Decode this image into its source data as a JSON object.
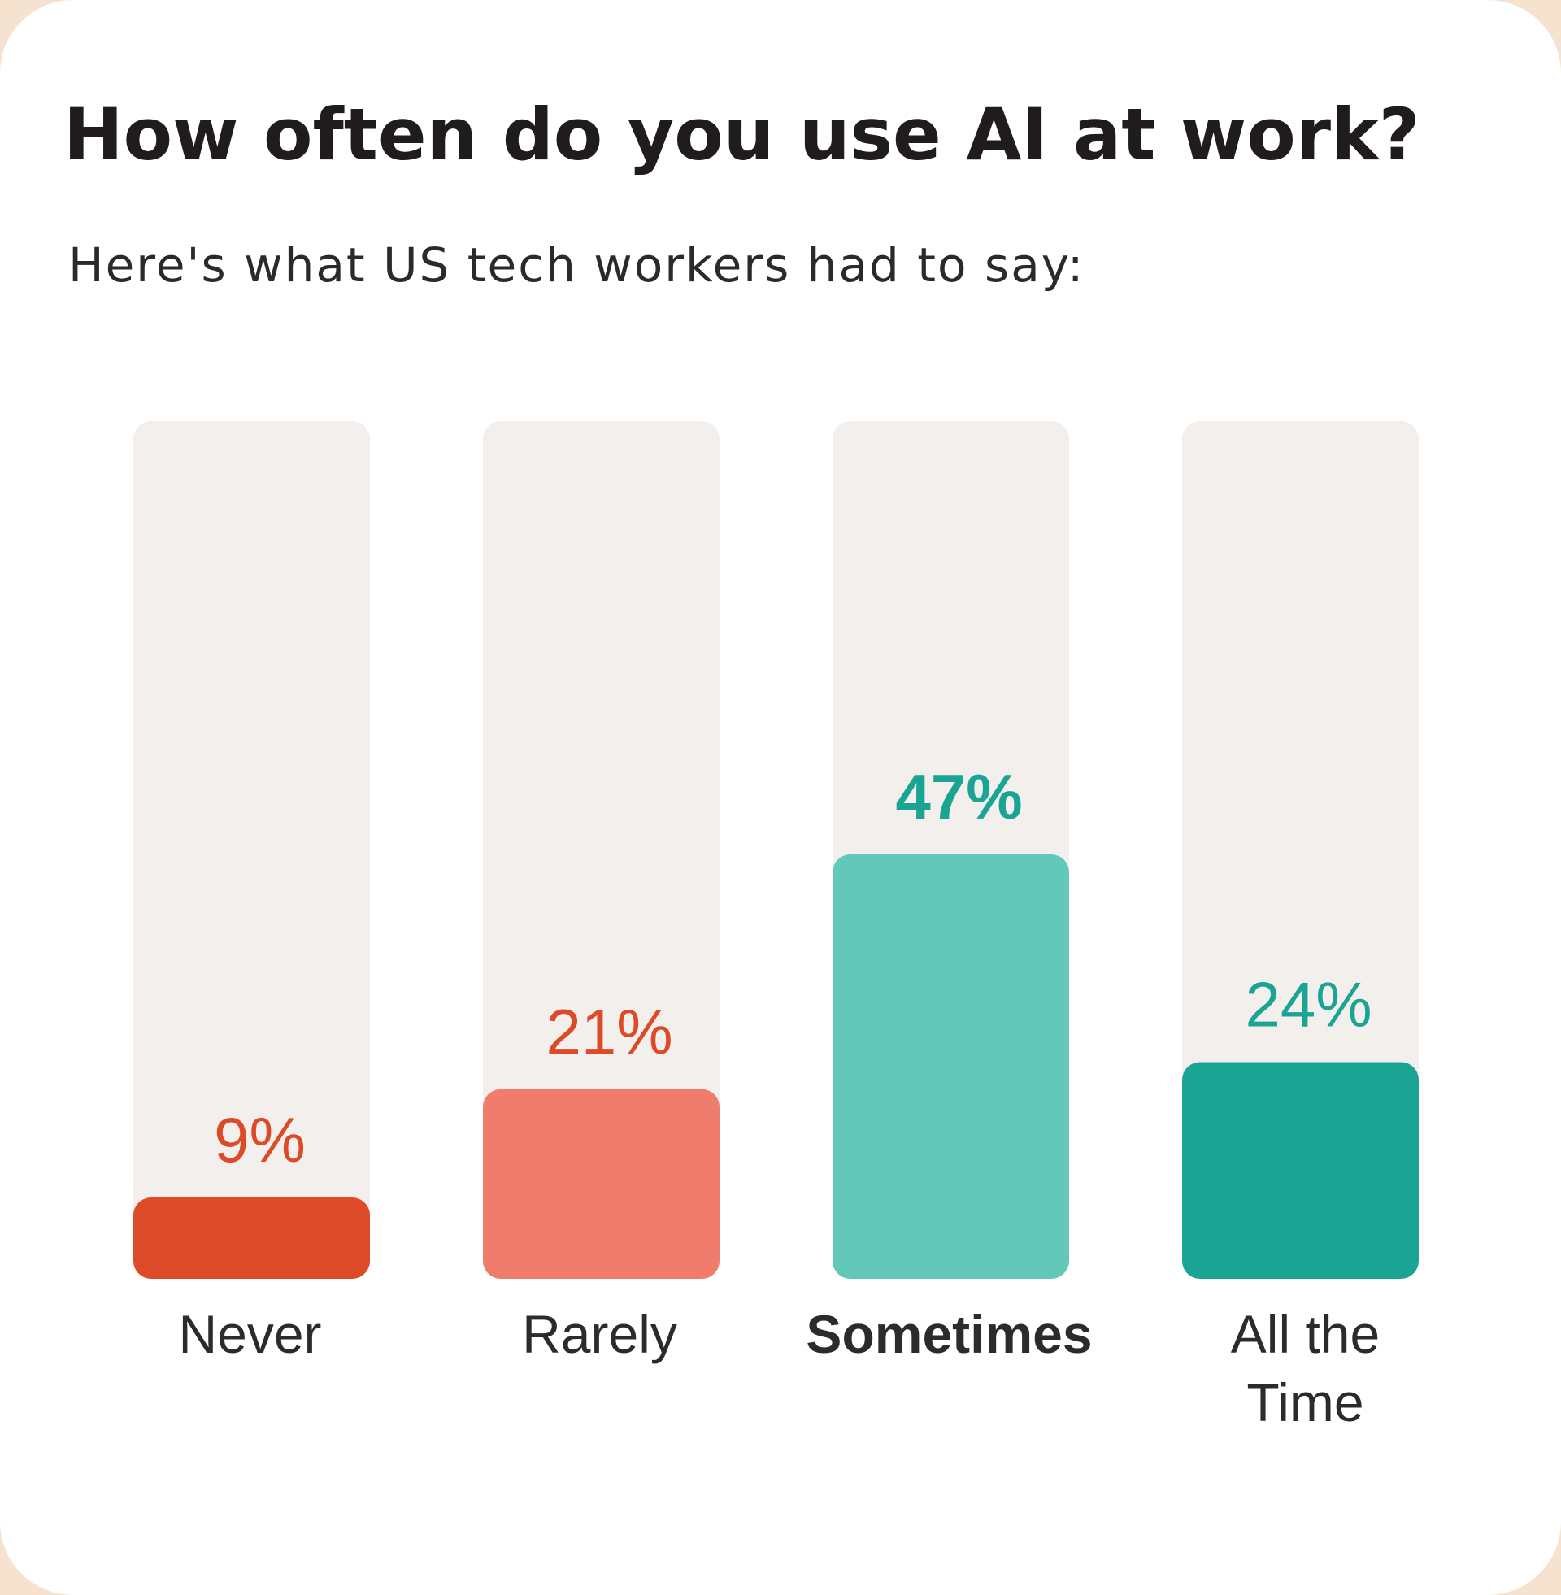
{
  "chart_data": {
    "type": "bar",
    "title": "How often do you use AI at work?",
    "subtitle": "Here's what US tech workers had to say:",
    "categories": [
      "Never",
      "Rarely",
      "Sometimes",
      "All the Time"
    ],
    "category_lines": [
      [
        "Never"
      ],
      [
        "Rarely"
      ],
      [
        "Sometimes"
      ],
      [
        "All the",
        "Time"
      ]
    ],
    "values": [
      9,
      21,
      47,
      24
    ],
    "value_labels": [
      "9%",
      "21%",
      "47%",
      "24%"
    ],
    "highlighted": "Sometimes",
    "ylim": [
      0,
      100
    ],
    "grid": false,
    "bar_colors": [
      "#dc4a28",
      "#ef7c6c",
      "#62c9ba",
      "#1aa493"
    ],
    "label_colors": [
      "#dc4a28",
      "#dc4a28",
      "#1aa493",
      "#1aa493"
    ],
    "track_color": "#f3efec"
  }
}
